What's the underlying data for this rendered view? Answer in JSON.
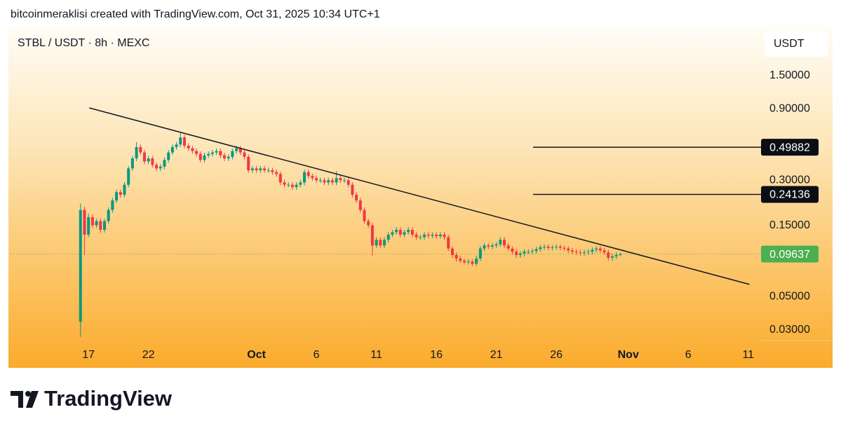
{
  "header": {
    "credit": "bitcoinmeraklisi created with TradingView.com, Oct 31, 2025 10:34 UTC+1"
  },
  "chart_data": {
    "type": "candlestick",
    "title": "STBL / USDT · 8h · MEXC",
    "y_axis_label": "USDT",
    "log_scale": true,
    "up_color": "#089981",
    "down_color": "#f23645",
    "open": [
      0.034,
      0.19,
      0.13,
      0.17,
      0.15,
      0.16,
      0.14,
      0.16,
      0.19,
      0.22,
      0.25,
      0.24,
      0.28,
      0.36,
      0.42,
      0.5,
      0.46,
      0.4,
      0.42,
      0.38,
      0.36,
      0.37,
      0.41,
      0.46,
      0.5,
      0.52,
      0.58,
      0.51,
      0.49,
      0.47,
      0.45,
      0.41,
      0.44,
      0.45,
      0.46,
      0.47,
      0.44,
      0.42,
      0.43,
      0.47,
      0.49,
      0.46,
      0.43,
      0.35,
      0.36,
      0.35,
      0.36,
      0.35,
      0.35,
      0.34,
      0.33,
      0.29,
      0.28,
      0.28,
      0.27,
      0.28,
      0.29,
      0.34,
      0.32,
      0.31,
      0.3,
      0.3,
      0.29,
      0.3,
      0.29,
      0.31,
      0.3,
      0.3,
      0.28,
      0.24,
      0.22,
      0.19,
      0.16,
      0.15,
      0.11,
      0.12,
      0.11,
      0.12,
      0.13,
      0.135,
      0.14,
      0.13,
      0.135,
      0.14,
      0.13,
      0.125,
      0.125,
      0.13,
      0.128,
      0.13,
      0.127,
      0.13,
      0.125,
      0.105,
      0.095,
      0.09,
      0.087,
      0.085,
      0.086,
      0.083,
      0.09,
      0.105,
      0.11,
      0.108,
      0.11,
      0.112,
      0.12,
      0.11,
      0.105,
      0.1,
      0.095,
      0.097,
      0.1,
      0.1,
      0.101,
      0.104,
      0.107,
      0.108,
      0.106,
      0.107,
      0.108,
      0.106,
      0.105,
      0.102,
      0.1,
      0.099,
      0.098,
      0.099,
      0.1,
      0.103,
      0.105,
      0.102,
      0.099,
      0.091,
      0.093,
      0.095
    ],
    "high": [
      0.21,
      0.2,
      0.18,
      0.177,
      0.166,
      0.166,
      0.166,
      0.198,
      0.229,
      0.26,
      0.26,
      0.291,
      0.374,
      0.437,
      0.54,
      0.52,
      0.478,
      0.437,
      0.437,
      0.395,
      0.385,
      0.426,
      0.478,
      0.52,
      0.541,
      0.62,
      0.603,
      0.53,
      0.51,
      0.489,
      0.468,
      0.458,
      0.468,
      0.478,
      0.489,
      0.489,
      0.458,
      0.447,
      0.489,
      0.51,
      0.51,
      0.478,
      0.447,
      0.374,
      0.374,
      0.374,
      0.374,
      0.364,
      0.364,
      0.354,
      0.343,
      0.302,
      0.291,
      0.291,
      0.291,
      0.302,
      0.354,
      0.354,
      0.333,
      0.322,
      0.312,
      0.312,
      0.312,
      0.312,
      0.345,
      0.322,
      0.312,
      0.312,
      0.291,
      0.25,
      0.229,
      0.198,
      0.166,
      0.156,
      0.125,
      0.125,
      0.125,
      0.135,
      0.14,
      0.146,
      0.146,
      0.14,
      0.146,
      0.146,
      0.135,
      0.13,
      0.135,
      0.135,
      0.135,
      0.135,
      0.135,
      0.135,
      0.13,
      0.109,
      0.099,
      0.094,
      0.09,
      0.089,
      0.089,
      0.094,
      0.109,
      0.114,
      0.114,
      0.114,
      0.116,
      0.125,
      0.125,
      0.114,
      0.109,
      0.104,
      0.101,
      0.104,
      0.104,
      0.105,
      0.108,
      0.111,
      0.112,
      0.112,
      0.111,
      0.112,
      0.112,
      0.11,
      0.109,
      0.106,
      0.104,
      0.103,
      0.103,
      0.104,
      0.107,
      0.109,
      0.109,
      0.106,
      0.103,
      0.097,
      0.099,
      0.098
    ],
    "low": [
      0.027,
      0.095,
      0.125,
      0.144,
      0.144,
      0.134,
      0.134,
      0.154,
      0.182,
      0.211,
      0.23,
      0.23,
      0.269,
      0.346,
      0.403,
      0.442,
      0.384,
      0.384,
      0.365,
      0.346,
      0.346,
      0.355,
      0.394,
      0.442,
      0.48,
      0.499,
      0.49,
      0.47,
      0.451,
      0.432,
      0.394,
      0.394,
      0.422,
      0.432,
      0.442,
      0.422,
      0.403,
      0.403,
      0.413,
      0.451,
      0.442,
      0.413,
      0.336,
      0.336,
      0.336,
      0.336,
      0.336,
      0.336,
      0.326,
      0.317,
      0.278,
      0.269,
      0.269,
      0.259,
      0.259,
      0.269,
      0.278,
      0.307,
      0.298,
      0.288,
      0.288,
      0.278,
      0.278,
      0.278,
      0.278,
      0.288,
      0.288,
      0.269,
      0.23,
      0.211,
      0.182,
      0.154,
      0.144,
      0.094,
      0.106,
      0.106,
      0.106,
      0.115,
      0.125,
      0.13,
      0.125,
      0.125,
      0.13,
      0.125,
      0.12,
      0.12,
      0.12,
      0.123,
      0.123,
      0.122,
      0.122,
      0.12,
      0.101,
      0.091,
      0.086,
      0.084,
      0.082,
      0.082,
      0.08,
      0.08,
      0.086,
      0.101,
      0.104,
      0.104,
      0.106,
      0.108,
      0.106,
      0.101,
      0.096,
      0.091,
      0.091,
      0.093,
      0.096,
      0.096,
      0.097,
      0.1,
      0.103,
      0.102,
      0.102,
      0.103,
      0.102,
      0.101,
      0.098,
      0.096,
      0.095,
      0.094,
      0.094,
      0.095,
      0.096,
      0.099,
      0.098,
      0.095,
      0.087,
      0.087,
      0.089,
      0.093
    ],
    "close": [
      0.19,
      0.13,
      0.17,
      0.15,
      0.16,
      0.14,
      0.16,
      0.19,
      0.22,
      0.25,
      0.24,
      0.28,
      0.36,
      0.42,
      0.5,
      0.46,
      0.4,
      0.42,
      0.38,
      0.36,
      0.37,
      0.41,
      0.46,
      0.5,
      0.52,
      0.58,
      0.51,
      0.49,
      0.47,
      0.45,
      0.41,
      0.44,
      0.45,
      0.46,
      0.47,
      0.44,
      0.42,
      0.43,
      0.47,
      0.49,
      0.46,
      0.43,
      0.35,
      0.36,
      0.35,
      0.36,
      0.35,
      0.35,
      0.34,
      0.33,
      0.29,
      0.28,
      0.28,
      0.27,
      0.28,
      0.29,
      0.34,
      0.32,
      0.31,
      0.3,
      0.3,
      0.29,
      0.3,
      0.29,
      0.31,
      0.3,
      0.3,
      0.28,
      0.24,
      0.22,
      0.19,
      0.16,
      0.15,
      0.11,
      0.12,
      0.11,
      0.12,
      0.13,
      0.135,
      0.14,
      0.13,
      0.135,
      0.14,
      0.13,
      0.125,
      0.125,
      0.13,
      0.128,
      0.13,
      0.127,
      0.13,
      0.125,
      0.105,
      0.095,
      0.09,
      0.087,
      0.085,
      0.086,
      0.083,
      0.09,
      0.105,
      0.11,
      0.108,
      0.11,
      0.112,
      0.12,
      0.11,
      0.105,
      0.1,
      0.095,
      0.097,
      0.1,
      0.1,
      0.101,
      0.104,
      0.107,
      0.108,
      0.106,
      0.107,
      0.108,
      0.106,
      0.105,
      0.102,
      0.1,
      0.099,
      0.098,
      0.099,
      0.1,
      0.103,
      0.105,
      0.102,
      0.099,
      0.091,
      0.093,
      0.095,
      0.09637
    ],
    "last_price": 0.09637,
    "last_price_color": "#4caf50",
    "levels": [
      0.49882,
      0.24136
    ],
    "trendline": {
      "x": [
        2.2,
        167.3
      ],
      "y": [
        0.913,
        0.0605
      ]
    },
    "xlim": [
      -17.5,
      170.2
    ],
    "xticks": [
      {
        "value": 2,
        "label": "17"
      },
      {
        "value": 17,
        "label": "22"
      },
      {
        "value": 44,
        "label": "Oct"
      },
      {
        "value": 59,
        "label": "6"
      },
      {
        "value": 74,
        "label": "11"
      },
      {
        "value": 89,
        "label": "16"
      },
      {
        "value": 104,
        "label": "21"
      },
      {
        "value": 119,
        "label": "26"
      },
      {
        "value": 137,
        "label": "Nov"
      },
      {
        "value": 152,
        "label": "6"
      },
      {
        "value": 167,
        "label": "11"
      }
    ],
    "ylim": [
      0.0255,
      3.12
    ],
    "yticks": [
      {
        "value": 1.5,
        "label": "1.50000"
      },
      {
        "value": 0.9,
        "label": "0.90000"
      },
      {
        "value": 0.3,
        "label": "0.30000"
      },
      {
        "value": 0.15,
        "label": "0.15000"
      },
      {
        "value": 0.05,
        "label": "0.05000"
      },
      {
        "value": 0.03,
        "label": "0.03000"
      }
    ]
  },
  "footer": {
    "logo": "TradingView"
  }
}
